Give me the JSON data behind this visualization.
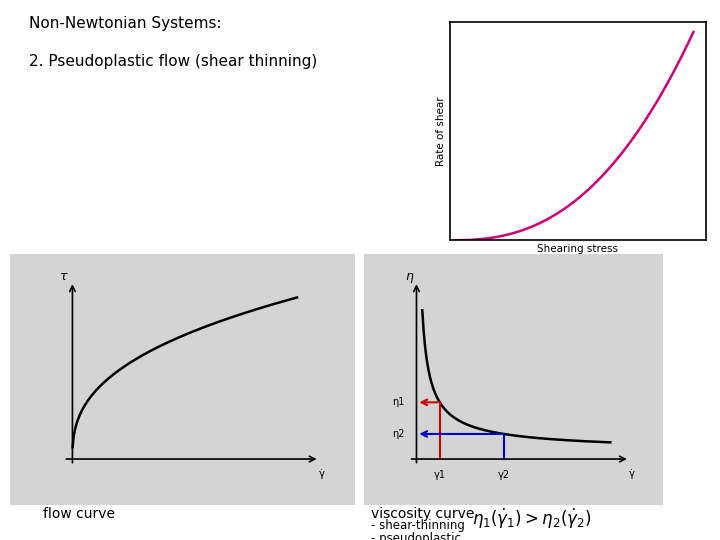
{
  "title_line1": "Non-Newtonian Systems:",
  "title_line2": "2. Pseudoplastic flow (shear thinning)",
  "bg_color": "#ffffff",
  "panel_bg": "#d4d4d4",
  "top_plot": {
    "ylabel": "Rate of shear",
    "xlabel": "Shearing stress",
    "curve_color": "#cc0077",
    "power": 2.5
  },
  "flow_curve": {
    "label": "flow curve",
    "ylabel": "τ",
    "xlabel": "γ̇",
    "curve_color": "#000000",
    "curve_power": 0.38
  },
  "viscosity_curve": {
    "label": "viscosity curve",
    "ylabel": "η",
    "xlabel": "γ̇",
    "curve_color": "#000000",
    "eta1_label": "η1",
    "eta2_label": "η2",
    "gamma1_label": "γ1",
    "gamma2_label": "γ2",
    "red_color": "#cc0000",
    "blue_color": "#0000cc",
    "g1": 0.12,
    "g2": 0.45
  },
  "formula": "$\\eta_1(\\dot{\\gamma}_1) > \\eta_2(\\dot{\\gamma}_2)$",
  "note1": "- shear-thinning",
  "note2": "- pseudoplastic"
}
